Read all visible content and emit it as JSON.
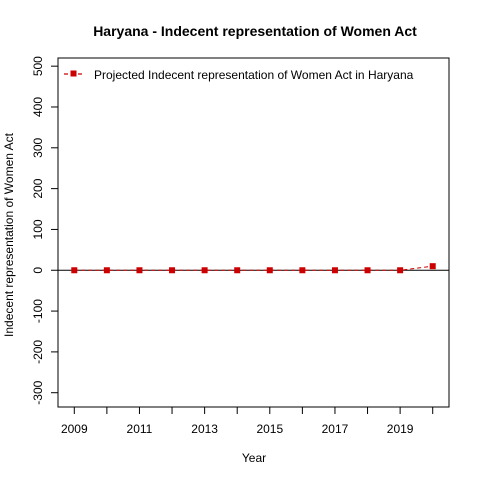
{
  "chart_data": {
    "type": "line",
    "title": "Haryana  -  Indecent representation of Women Act",
    "xlabel": "Year",
    "ylabel": "Indecent representation of Women Act",
    "xlim": [
      2008.5,
      2020.5
    ],
    "ylim": [
      -335,
      520
    ],
    "x_ticks": [
      2009,
      2010,
      2011,
      2012,
      2013,
      2014,
      2015,
      2016,
      2017,
      2018,
      2019,
      2020
    ],
    "x_tick_labels": [
      "2009",
      "",
      "2011",
      "",
      "2013",
      "",
      "2015",
      "",
      "2017",
      "",
      "2019",
      ""
    ],
    "y_ticks": [
      -300,
      -200,
      -100,
      0,
      100,
      200,
      300,
      400,
      500
    ],
    "y_tick_labels": [
      "-300",
      "-200",
      "-100",
      "0",
      "100",
      "200",
      "300",
      "400",
      "500"
    ],
    "reference_line": 0,
    "legend_position": "top-left",
    "series": [
      {
        "name": "Projected  Indecent representation of Women Act  in  Haryana",
        "color": "#cc0000",
        "x": [
          2009,
          2010,
          2011,
          2012,
          2013,
          2014,
          2015,
          2016,
          2017,
          2018,
          2019,
          2020
        ],
        "values": [
          0,
          0,
          0,
          0,
          0,
          0,
          0,
          0,
          0,
          0,
          0,
          10
        ]
      }
    ]
  }
}
